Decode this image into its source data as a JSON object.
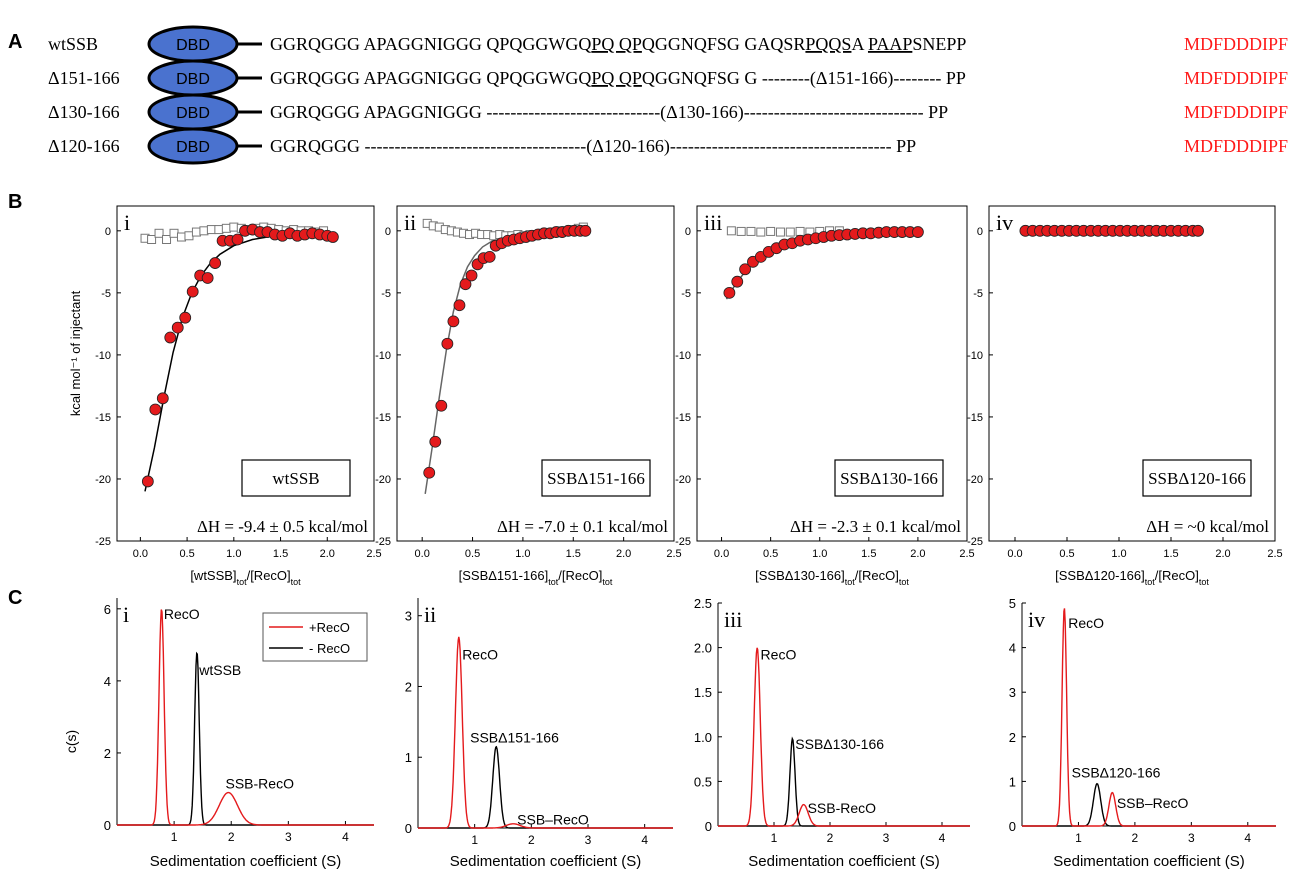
{
  "panel_labels": {
    "a": "A",
    "b": "B",
    "c": "C"
  },
  "panel_a": {
    "dbd_label": "DBD",
    "ctail": "MDFDDDIPF",
    "ctail_color": "#ff1a1a",
    "dbd_color": "#4a72cf",
    "rows": [
      {
        "name": "wtSSB",
        "seq": [
          {
            "t": "GGRQGGG APAGGNIGGG QPQGGWGQ"
          },
          {
            "t": "PQ QP",
            "u": true
          },
          {
            "t": "QGGNQFSG GAQSR"
          },
          {
            "t": "PQQS",
            "u": true
          },
          {
            "t": "A "
          },
          {
            "t": "PAAP",
            "u": true
          },
          {
            "t": "SNEPP "
          }
        ]
      },
      {
        "name": "Δ151-166",
        "seq": [
          {
            "t": "GGRQGGG APAGGNIGGG QPQGGWGQ"
          },
          {
            "t": "PQ QP",
            "u": true
          },
          {
            "t": "QGGNQFSG G --------(Δ151-166)-------- PP "
          }
        ]
      },
      {
        "name": "Δ130-166",
        "seq": [
          {
            "t": "GGRQGGG APAGGNIGGG  -----------------------------(Δ130-166)------------------------------ PP "
          }
        ]
      },
      {
        "name": "Δ120-166",
        "seq": [
          {
            "t": "GGRQGGG -------------------------------------(Δ120-166)------------------------------------- PP "
          }
        ]
      }
    ]
  },
  "chart_data": [
    {
      "type": "scatter",
      "roman": "i",
      "ylabel": "kcal mol⁻¹ of injectant",
      "xlabel_parts": [
        {
          "t": "[wtSSB]"
        },
        {
          "t": "tot",
          "sub": true
        },
        {
          "t": "/[RecO]"
        },
        {
          "t": "tot",
          "sub": true
        }
      ],
      "xlim": [
        -0.25,
        2.5
      ],
      "ylim": [
        -25,
        2
      ],
      "xticks": [
        "0.0",
        "0.5",
        "1.0",
        "1.5",
        "2.0",
        "2.5"
      ],
      "yticks": [
        "0",
        "-5",
        "-10",
        "-15",
        "-20",
        "-25"
      ],
      "xtick_values": [
        0,
        0.5,
        1,
        1.5,
        2,
        2.5
      ],
      "ytick_values": [
        0,
        -5,
        -10,
        -15,
        -20,
        -25
      ],
      "box_label": "wtSSB",
      "dh": "ΔH = -9.4 ± 0.5 kcal/mol",
      "series": [
        {
          "marker": "square",
          "color": "#777777",
          "x": [
            0.05,
            0.12,
            0.2,
            0.28,
            0.36,
            0.44,
            0.52,
            0.6,
            0.68,
            0.76,
            0.84,
            0.92,
            1.0,
            1.08,
            1.16,
            1.24,
            1.32,
            1.4,
            1.48,
            1.56,
            1.64,
            1.72,
            1.8,
            1.88,
            1.96
          ],
          "y": [
            -0.6,
            -0.7,
            -0.2,
            -0.7,
            -0.2,
            -0.5,
            -0.4,
            -0.1,
            0.0,
            0.1,
            0.1,
            0.2,
            0.3,
            0.2,
            0.1,
            0.2,
            0.3,
            0.2,
            0.1,
            0.0,
            0.1,
            0.0,
            0.0,
            -0.1,
            0.0
          ]
        },
        {
          "marker": "circle",
          "color": "#e41a1c",
          "x": [
            0.08,
            0.16,
            0.24,
            0.32,
            0.4,
            0.48,
            0.56,
            0.64,
            0.72,
            0.8,
            0.88,
            0.96,
            1.04,
            1.12,
            1.2,
            1.28,
            1.36,
            1.44,
            1.52,
            1.6,
            1.68,
            1.76,
            1.84,
            1.92,
            2.0,
            2.06
          ],
          "y": [
            -20.2,
            -14.4,
            -13.5,
            -8.6,
            -7.8,
            -7.0,
            -4.9,
            -3.6,
            -3.8,
            -2.6,
            -0.8,
            -0.8,
            -0.7,
            0.0,
            0.1,
            -0.1,
            -0.1,
            -0.3,
            -0.4,
            -0.2,
            -0.4,
            -0.3,
            -0.2,
            -0.3,
            -0.4,
            -0.5
          ]
        },
        {
          "type": "line",
          "color": "#000000",
          "x": [
            0.05,
            0.15,
            0.25,
            0.35,
            0.45,
            0.55,
            0.65,
            0.75,
            0.85,
            1.0,
            1.2,
            1.4,
            1.6,
            1.8,
            2.0
          ],
          "y": [
            -21.0,
            -17.5,
            -13.5,
            -9.8,
            -7.0,
            -5.0,
            -3.6,
            -2.6,
            -1.9,
            -1.2,
            -0.7,
            -0.45,
            -0.3,
            -0.2,
            -0.15
          ]
        }
      ]
    },
    {
      "type": "scatter",
      "roman": "ii",
      "ylabel": "",
      "xlabel_parts": [
        {
          "t": "[SSBΔ151-166]"
        },
        {
          "t": "tot",
          "sub": true
        },
        {
          "t": "/[RecO]"
        },
        {
          "t": "tot",
          "sub": true
        }
      ],
      "xlim": [
        -0.25,
        2.5
      ],
      "ylim": [
        -25,
        2
      ],
      "xticks": [
        "0.0",
        "0.5",
        "1.0",
        "1.5",
        "2.0",
        "2.5"
      ],
      "yticks": [
        "0",
        "-5",
        "-10",
        "-15",
        "-20",
        "-25"
      ],
      "xtick_values": [
        0,
        0.5,
        1,
        1.5,
        2,
        2.5
      ],
      "ytick_values": [
        0,
        -5,
        -10,
        -15,
        -20,
        -25
      ],
      "box_label": "SSBΔ151-166",
      "dh": "ΔH = -7.0 ± 0.1 kcal/mol",
      "series": [
        {
          "marker": "square",
          "color": "#777777",
          "x": [
            0.05,
            0.11,
            0.17,
            0.23,
            0.29,
            0.35,
            0.41,
            0.47,
            0.53,
            0.59,
            0.65,
            0.71,
            0.77,
            0.83,
            0.89,
            0.95,
            1.01,
            1.07,
            1.13,
            1.19,
            1.25,
            1.31,
            1.37,
            1.43,
            1.49,
            1.55,
            1.6
          ],
          "y": [
            0.6,
            0.4,
            0.3,
            0.1,
            0.0,
            -0.1,
            -0.2,
            -0.3,
            -0.2,
            -0.3,
            -0.3,
            -0.4,
            -0.3,
            -0.4,
            -0.4,
            -0.3,
            -0.4,
            -0.3,
            -0.3,
            -0.2,
            -0.2,
            -0.1,
            0.0,
            0.0,
            0.1,
            0.2,
            0.3
          ]
        },
        {
          "marker": "circle",
          "color": "#e41a1c",
          "x": [
            0.07,
            0.13,
            0.19,
            0.25,
            0.31,
            0.37,
            0.43,
            0.49,
            0.55,
            0.61,
            0.67,
            0.73,
            0.79,
            0.85,
            0.91,
            0.97,
            1.03,
            1.09,
            1.15,
            1.21,
            1.27,
            1.33,
            1.39,
            1.45,
            1.51,
            1.57,
            1.62
          ],
          "y": [
            -19.5,
            -17.0,
            -14.1,
            -9.1,
            -7.3,
            -6.0,
            -4.3,
            -3.6,
            -2.7,
            -2.2,
            -2.1,
            -1.2,
            -1.0,
            -0.8,
            -0.7,
            -0.6,
            -0.5,
            -0.4,
            -0.3,
            -0.2,
            -0.2,
            -0.1,
            -0.1,
            0.0,
            0.0,
            0.0,
            0.0
          ]
        },
        {
          "type": "line",
          "color": "#666666",
          "x": [
            0.03,
            0.1,
            0.17,
            0.24,
            0.31,
            0.38,
            0.45,
            0.52,
            0.6,
            0.7,
            0.8,
            0.9,
            1.0
          ],
          "y": [
            -21.2,
            -17.4,
            -13.4,
            -9.6,
            -6.5,
            -4.3,
            -2.9,
            -2.0,
            -1.3,
            -0.8,
            -0.5,
            -0.3,
            -0.2
          ]
        }
      ]
    },
    {
      "type": "scatter",
      "roman": "iii",
      "ylabel": "",
      "xlabel_parts": [
        {
          "t": "[SSBΔ130-166]"
        },
        {
          "t": "tot",
          "sub": true
        },
        {
          "t": "/[RecO]"
        },
        {
          "t": "tot",
          "sub": true
        }
      ],
      "xlim": [
        -0.25,
        2.5
      ],
      "ylim": [
        -25,
        2
      ],
      "xticks": [
        "0.0",
        "0.5",
        "1.0",
        "1.5",
        "2.0",
        "2.5"
      ],
      "yticks": [
        "0",
        "-5",
        "-10",
        "-15",
        "-20",
        "-25"
      ],
      "xtick_values": [
        0,
        0.5,
        1,
        1.5,
        2,
        2.5
      ],
      "ytick_values": [
        0,
        -5,
        -10,
        -15,
        -20,
        -25
      ],
      "box_label": "SSBΔ130-166",
      "dh": "ΔH = -2.3 ± 0.1 kcal/mol",
      "series": [
        {
          "marker": "square",
          "color": "#777777",
          "x": [
            0.1,
            0.2,
            0.3,
            0.4,
            0.5,
            0.6,
            0.7,
            0.8,
            0.9,
            1.0,
            1.1,
            1.2
          ],
          "y": [
            0.0,
            -0.05,
            -0.05,
            -0.1,
            -0.05,
            -0.1,
            -0.1,
            -0.05,
            -0.1,
            -0.05,
            0.0,
            0.0
          ]
        },
        {
          "marker": "circle",
          "color": "#e41a1c",
          "x": [
            0.08,
            0.16,
            0.24,
            0.32,
            0.4,
            0.48,
            0.56,
            0.64,
            0.72,
            0.8,
            0.88,
            0.96,
            1.04,
            1.12,
            1.2,
            1.28,
            1.36,
            1.44,
            1.52,
            1.6,
            1.68,
            1.76,
            1.84,
            1.92,
            2.0
          ],
          "y": [
            -5.0,
            -4.1,
            -3.1,
            -2.5,
            -2.1,
            -1.7,
            -1.4,
            -1.1,
            -1.0,
            -0.8,
            -0.7,
            -0.6,
            -0.5,
            -0.4,
            -0.35,
            -0.3,
            -0.25,
            -0.2,
            -0.2,
            -0.15,
            -0.1,
            -0.1,
            -0.1,
            -0.1,
            -0.1
          ]
        },
        {
          "type": "line",
          "color": "#555555",
          "x": [
            0.05,
            0.15,
            0.25,
            0.35,
            0.45,
            0.6,
            0.8,
            1.0,
            1.2,
            1.5,
            2.0
          ],
          "y": [
            -5.5,
            -4.2,
            -3.2,
            -2.5,
            -2.0,
            -1.45,
            -0.95,
            -0.65,
            -0.45,
            -0.25,
            -0.1
          ]
        }
      ]
    },
    {
      "type": "scatter",
      "roman": "iv",
      "ylabel": "",
      "xlabel_parts": [
        {
          "t": "[SSBΔ120-166]"
        },
        {
          "t": "tot",
          "sub": true
        },
        {
          "t": "/[RecO]"
        },
        {
          "t": "tot",
          "sub": true
        }
      ],
      "xlim": [
        -0.25,
        2.5
      ],
      "ylim": [
        -25,
        2
      ],
      "xticks": [
        "0.0",
        "0.5",
        "1.0",
        "1.5",
        "2.0",
        "2.5"
      ],
      "yticks": [
        "0",
        "-5",
        "-10",
        "-15",
        "-20",
        "-25"
      ],
      "xtick_values": [
        0,
        0.5,
        1,
        1.5,
        2,
        2.5
      ],
      "ytick_values": [
        0,
        -5,
        -10,
        -15,
        -20,
        -25
      ],
      "box_label": "SSBΔ120-166",
      "dh": "ΔH = ~0 kcal/mol",
      "series": [
        {
          "marker": "circle",
          "color": "#e41a1c",
          "x": [
            0.1,
            0.17,
            0.24,
            0.31,
            0.38,
            0.45,
            0.52,
            0.59,
            0.66,
            0.73,
            0.8,
            0.87,
            0.94,
            1.01,
            1.08,
            1.15,
            1.22,
            1.29,
            1.36,
            1.43,
            1.5,
            1.57,
            1.64,
            1.71,
            1.76
          ],
          "y": [
            0,
            0,
            0,
            0,
            0,
            0,
            0,
            0,
            0,
            0,
            0,
            0,
            0,
            0,
            0,
            0,
            0,
            0,
            0,
            0,
            0,
            0,
            0,
            0,
            0
          ]
        }
      ]
    },
    {
      "type": "line",
      "roman": "i",
      "xlabel": "Sedimentation coefficient (S)",
      "ylabel": "c(s)",
      "xlim": [
        0,
        4.5
      ],
      "ylim": [
        0,
        6.3
      ],
      "xticks": [
        "1",
        "2",
        "3",
        "4"
      ],
      "xtick_values": [
        1,
        2,
        3,
        4
      ],
      "yticks": [
        "0",
        "2",
        "4",
        "6"
      ],
      "ytick_values": [
        0,
        2,
        4,
        6
      ],
      "legend": {
        "entries": [
          "+RecO",
          "- RecO"
        ]
      },
      "series": [
        {
          "color": "#e41a1c",
          "peaks": [
            {
              "c": 0.78,
              "w": 0.045,
              "h": 6.0
            },
            {
              "c": 1.95,
              "w": 0.16,
              "h": 0.9
            }
          ]
        },
        {
          "color": "#000000",
          "peaks": [
            {
              "c": 1.4,
              "w": 0.04,
              "h": 4.8
            }
          ]
        }
      ],
      "annotations": [
        {
          "text": "RecO",
          "x": 0.82,
          "y": 5.85
        },
        {
          "text": "wtSSB",
          "x": 1.44,
          "y": 4.3
        },
        {
          "text": "SSB-RecO",
          "x": 1.9,
          "y": 1.15
        }
      ]
    },
    {
      "type": "line",
      "roman": "ii",
      "xlabel": "Sedimentation coefficient (S)",
      "ylabel": "",
      "xlim": [
        0,
        4.5
      ],
      "ylim": [
        0,
        3.25
      ],
      "xticks": [
        "1",
        "2",
        "3",
        "4"
      ],
      "xtick_values": [
        1,
        2,
        3,
        4
      ],
      "yticks": [
        "0",
        "1",
        "2",
        "3"
      ],
      "ytick_values": [
        0,
        1,
        2,
        3
      ],
      "series": [
        {
          "color": "#e41a1c",
          "peaks": [
            {
              "c": 0.72,
              "w": 0.06,
              "h": 2.7
            },
            {
              "c": 1.68,
              "w": 0.12,
              "h": 0.06
            }
          ]
        },
        {
          "color": "#000000",
          "peaks": [
            {
              "c": 1.38,
              "w": 0.06,
              "h": 1.15
            }
          ]
        }
      ],
      "annotations": [
        {
          "text": "RecO",
          "x": 0.78,
          "y": 2.45
        },
        {
          "text": "SSBΔ151-166",
          "x": 0.92,
          "y": 1.28
        },
        {
          "text": "SSB–RecO",
          "x": 1.75,
          "y": 0.12
        }
      ]
    },
    {
      "type": "line",
      "roman": "iii",
      "xlabel": "Sedimentation coefficient (S)",
      "ylabel": "",
      "xlim": [
        0,
        4.5
      ],
      "ylim": [
        0,
        2.5
      ],
      "xticks": [
        "1",
        "2",
        "3",
        "4"
      ],
      "xtick_values": [
        1,
        2,
        3,
        4
      ],
      "yticks": [
        "0",
        "0.5",
        "1.0",
        "1.5",
        "2.0",
        "2.5"
      ],
      "ytick_values": [
        0,
        0.5,
        1,
        1.5,
        2,
        2.5
      ],
      "series": [
        {
          "color": "#e41a1c",
          "peaks": [
            {
              "c": 0.7,
              "w": 0.055,
              "h": 2.0
            },
            {
              "c": 1.53,
              "w": 0.08,
              "h": 0.24
            }
          ]
        },
        {
          "color": "#000000",
          "peaks": [
            {
              "c": 1.33,
              "w": 0.045,
              "h": 0.98
            }
          ]
        }
      ],
      "annotations": [
        {
          "text": "RecO",
          "x": 0.76,
          "y": 1.92
        },
        {
          "text": "SSBΔ130-166",
          "x": 1.38,
          "y": 0.92
        },
        {
          "text": "SSB-RecO",
          "x": 1.6,
          "y": 0.2
        }
      ]
    },
    {
      "type": "line",
      "roman": "iv",
      "xlabel": "Sedimentation coefficient (S)",
      "ylabel": "",
      "xlim": [
        0,
        4.5
      ],
      "ylim": [
        0,
        5
      ],
      "xticks": [
        "1",
        "2",
        "3",
        "4"
      ],
      "xtick_values": [
        1,
        2,
        3,
        4
      ],
      "yticks": [
        "0",
        "1",
        "2",
        "3",
        "4",
        "5"
      ],
      "ytick_values": [
        0,
        1,
        2,
        3,
        4,
        5
      ],
      "series": [
        {
          "color": "#e41a1c",
          "peaks": [
            {
              "c": 0.75,
              "w": 0.04,
              "h": 4.9
            },
            {
              "c": 1.6,
              "w": 0.06,
              "h": 0.75
            }
          ]
        },
        {
          "color": "#000000",
          "peaks": [
            {
              "c": 1.33,
              "w": 0.065,
              "h": 0.95
            }
          ]
        }
      ],
      "annotations": [
        {
          "text": "RecO",
          "x": 0.82,
          "y": 4.55
        },
        {
          "text": "SSBΔ120-166",
          "x": 0.88,
          "y": 1.2
        },
        {
          "text": "SSB–RecO",
          "x": 1.68,
          "y": 0.52
        }
      ]
    }
  ]
}
